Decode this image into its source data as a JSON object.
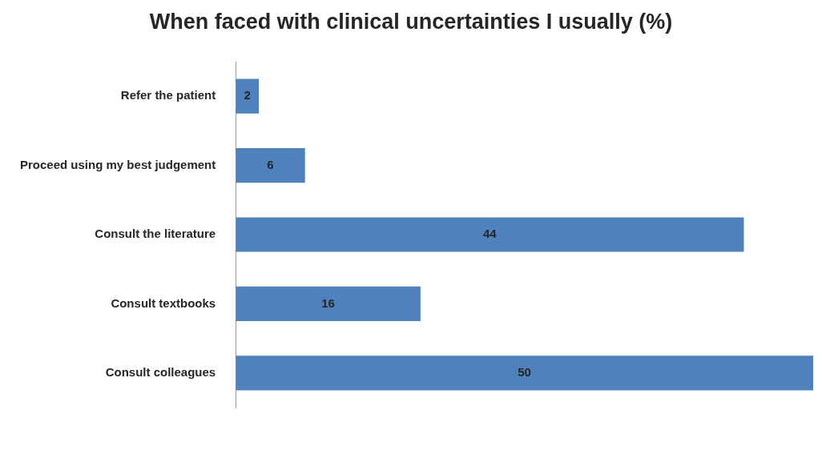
{
  "chart_data": {
    "type": "bar",
    "orientation": "horizontal",
    "title": "When faced with clinical uncertainties I usually (%)",
    "categories": [
      "Refer the patient",
      "Proceed using my best judgement",
      "Consult the literature",
      "Consult textbooks",
      "Consult colleagues"
    ],
    "values": [
      2,
      6,
      44,
      16,
      50
    ],
    "color": "#4f81bd",
    "data_labels": true,
    "grid": false,
    "legend": false
  }
}
